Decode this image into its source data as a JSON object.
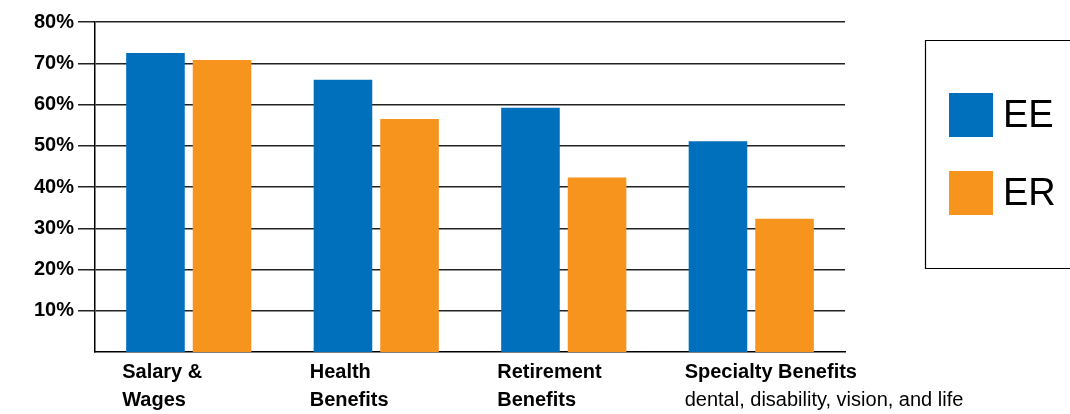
{
  "chart_data": {
    "type": "bar",
    "categories": [
      "Salary & Wages",
      "Health Benefits",
      "Retirement Benefits",
      "Specialty Benefits"
    ],
    "series": [
      {
        "name": "EE",
        "color": "#0070bc",
        "values": [
          72.5,
          66.0,
          59.2,
          51.1
        ]
      },
      {
        "name": "ER",
        "color": "#f7941e",
        "values": [
          70.8,
          56.5,
          42.3,
          32.3
        ]
      }
    ],
    "ylim": [
      0,
      80
    ],
    "yticks": [
      {
        "value": 10,
        "label": "10%"
      },
      {
        "value": 20,
        "label": "20%"
      },
      {
        "value": 30,
        "label": "30%"
      },
      {
        "value": 40,
        "label": "40%"
      },
      {
        "value": 50,
        "label": "50%"
      },
      {
        "value": 60,
        "label": "60%"
      },
      {
        "value": 70,
        "label": "70%"
      },
      {
        "value": 80,
        "label": "80%"
      }
    ],
    "grid": "y",
    "legend": "right",
    "annotations": [
      "dental, disability, vision, and life"
    ]
  }
}
